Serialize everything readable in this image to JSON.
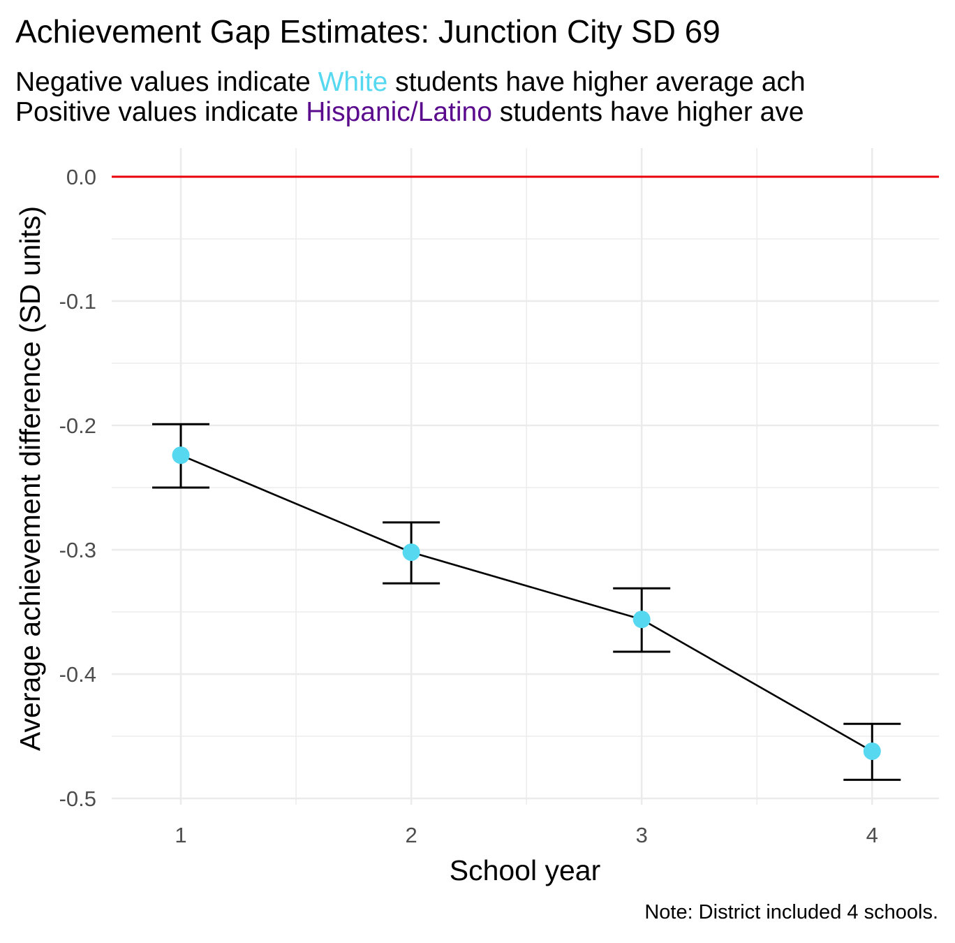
{
  "chart_data": {
    "type": "line",
    "title": "Achievement Gap Estimates: Junction City SD 69",
    "subtitle_lines": [
      {
        "prefix": "Negative values indicate ",
        "group": "White",
        "suffix": " students have higher average ach"
      },
      {
        "prefix": "Positive values indicate ",
        "group": "Hispanic/Latino",
        "suffix": " students have higher ave"
      }
    ],
    "xlabel": "School year",
    "ylabel": "Average achievement difference (SD units)",
    "caption": "Note: District included 4 schools.",
    "x": [
      1,
      2,
      3,
      4
    ],
    "x_ticks": [
      "1",
      "2",
      "3",
      "4"
    ],
    "y_ticks": [
      "0.0",
      "-0.1",
      "-0.2",
      "-0.3",
      "-0.4",
      "-0.5"
    ],
    "xlim": [
      0.7,
      4.29
    ],
    "ylim": [
      -0.505,
      0.023
    ],
    "series": [
      {
        "values": [
          -0.224,
          -0.302,
          -0.356,
          -0.462
        ],
        "ci_upper": [
          -0.199,
          -0.278,
          -0.331,
          -0.44
        ],
        "ci_lower": [
          -0.25,
          -0.327,
          -0.382,
          -0.485
        ]
      }
    ],
    "reference_line": {
      "y": 0.0,
      "color": "#e8000b"
    },
    "colors": {
      "point": "#55d8f0",
      "line": "#000000",
      "white_label": "#55d8f0",
      "hispanic_label": "#5a0a8c",
      "grid": "#ebebeb"
    },
    "grid": true
  }
}
